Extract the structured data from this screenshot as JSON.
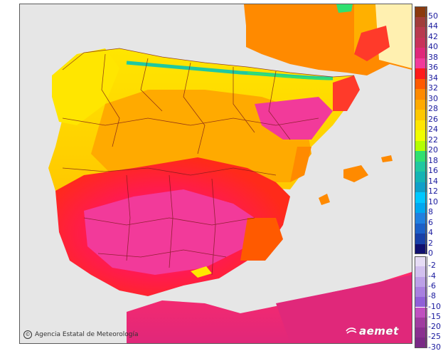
{
  "credit": {
    "text": "Agencia Estatal de Meteorología",
    "icon": "copyright-icon"
  },
  "logo": {
    "text": "aemet",
    "icon": "aemet-swirl-icon"
  },
  "colors": {
    "sea": "#e6e6e6",
    "border": "#7a1a1a"
  },
  "legend": {
    "positive": [
      {
        "label": "50",
        "color": "#8b3a0e"
      },
      {
        "label": "44",
        "color": "#a13d3a"
      },
      {
        "label": "42",
        "color": "#b83a4e"
      },
      {
        "label": "40",
        "color": "#c8325a"
      },
      {
        "label": "38",
        "color": "#e0287a"
      },
      {
        "label": "36",
        "color": "#f23a9a"
      },
      {
        "label": "34",
        "color": "#ff1a1a"
      },
      {
        "label": "32",
        "color": "#ff5a00"
      },
      {
        "label": "30",
        "color": "#ff8a00"
      },
      {
        "label": "28",
        "color": "#ffaa00"
      },
      {
        "label": "26",
        "color": "#ffc800"
      },
      {
        "label": "24",
        "color": "#ffe600"
      },
      {
        "label": "22",
        "color": "#f0ff00"
      },
      {
        "label": "20",
        "color": "#b4ff00"
      },
      {
        "label": "18",
        "color": "#30e070"
      },
      {
        "label": "16",
        "color": "#20c8a0"
      },
      {
        "label": "14",
        "color": "#14b4b4"
      },
      {
        "label": "12",
        "color": "#10a0c8"
      },
      {
        "label": "10",
        "color": "#00c8ff"
      },
      {
        "label": "8",
        "color": "#00a8f0"
      },
      {
        "label": "6",
        "color": "#2080e0"
      },
      {
        "label": "4",
        "color": "#1c60c8"
      },
      {
        "label": "2",
        "color": "#1840a8"
      },
      {
        "label": "0",
        "color": "#101070"
      }
    ],
    "negative": [
      {
        "label": "-2",
        "color": "#e6dcf5"
      },
      {
        "label": "-4",
        "color": "#d2c0ef"
      },
      {
        "label": "-6",
        "color": "#bca0e8"
      },
      {
        "label": "-8",
        "color": "#a880e0"
      },
      {
        "label": "-10",
        "color": "#9060d8"
      },
      {
        "label": "-15",
        "color": "#c050c0"
      },
      {
        "label": "-20",
        "color": "#a03ca0"
      },
      {
        "label": "-25",
        "color": "#8a3090"
      },
      {
        "label": "-30",
        "color": "#7a2a86"
      }
    ]
  }
}
